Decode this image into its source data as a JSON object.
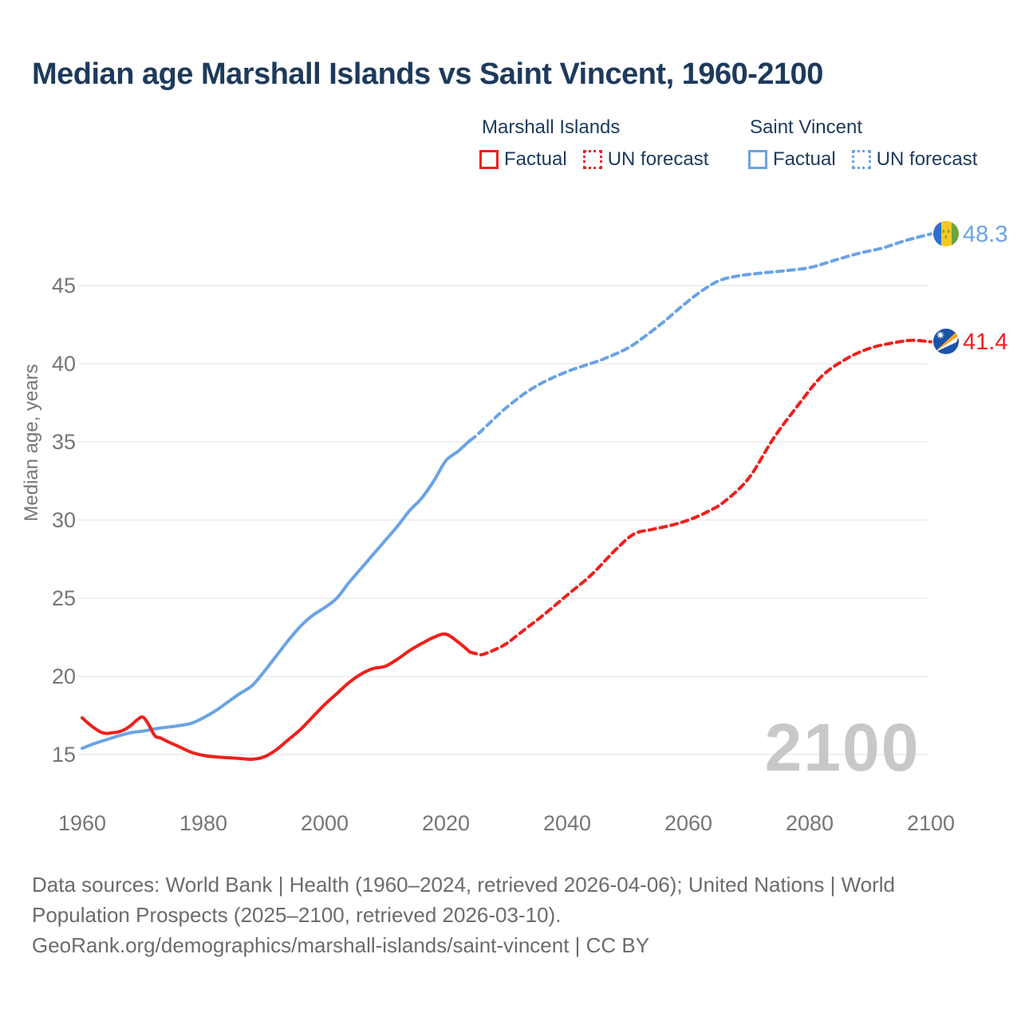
{
  "title": "Median age Marshall Islands vs Saint Vincent, 1960-2100",
  "legend": {
    "marshall": {
      "header": "Marshall Islands",
      "factual": "Factual",
      "forecast": "UN forecast"
    },
    "saint_vincent": {
      "header": "Saint Vincent",
      "factual": "Factual",
      "forecast": "UN forecast"
    }
  },
  "colors": {
    "marshall_series": "#ee201c",
    "saint_vincent_series": "#6aa3e4",
    "title_text": "#1d3a5c",
    "axis_text": "#767676",
    "gridline": "#ebebeb",
    "watermark_text": "#c8c8c8",
    "footer_text": "#6b6b6b"
  },
  "watermark": "2100",
  "end_labels": {
    "saint_vincent": "48.3",
    "marshall": "41.4"
  },
  "icons": {
    "saint_vincent": "saint-vincent-flag",
    "marshall": "marshall-islands-flag"
  },
  "chart_data": {
    "type": "line",
    "title": "Median age Marshall Islands vs Saint Vincent, 1960-2100",
    "xlabel": "",
    "ylabel": "Median age, years",
    "x_ticks": [
      1960,
      1980,
      2000,
      2020,
      2040,
      2060,
      2080,
      2100
    ],
    "y_ticks": [
      15,
      20,
      25,
      30,
      35,
      40,
      45
    ],
    "xlim": [
      1960,
      2100
    ],
    "ylim": [
      13.5,
      49
    ],
    "grid": "horizontal",
    "legend_position": "top-right",
    "series": [
      {
        "id": "saint-vincent-factual",
        "name": "Saint Vincent — Factual",
        "color": "#6aa3e4",
        "style": "solid",
        "points": [
          [
            1960,
            15.4
          ],
          [
            1962,
            15.7
          ],
          [
            1964,
            15.95
          ],
          [
            1966,
            16.2
          ],
          [
            1968,
            16.4
          ],
          [
            1970,
            16.5
          ],
          [
            1972,
            16.65
          ],
          [
            1974,
            16.75
          ],
          [
            1976,
            16.85
          ],
          [
            1978,
            17.0
          ],
          [
            1980,
            17.35
          ],
          [
            1982,
            17.8
          ],
          [
            1984,
            18.35
          ],
          [
            1986,
            18.9
          ],
          [
            1988,
            19.4
          ],
          [
            1990,
            20.3
          ],
          [
            1992,
            21.3
          ],
          [
            1994,
            22.3
          ],
          [
            1996,
            23.2
          ],
          [
            1998,
            23.9
          ],
          [
            2000,
            24.4
          ],
          [
            2002,
            25.0
          ],
          [
            2004,
            26.0
          ],
          [
            2006,
            26.9
          ],
          [
            2008,
            27.8
          ],
          [
            2010,
            28.7
          ],
          [
            2012,
            29.6
          ],
          [
            2014,
            30.6
          ],
          [
            2016,
            31.4
          ],
          [
            2018,
            32.5
          ],
          [
            2020,
            33.8
          ],
          [
            2022,
            34.4
          ],
          [
            2024,
            35.1
          ]
        ]
      },
      {
        "id": "saint-vincent-forecast",
        "name": "Saint Vincent — UN forecast",
        "color": "#6aa3e4",
        "style": "dashed",
        "points": [
          [
            2025,
            35.4
          ],
          [
            2028,
            36.5
          ],
          [
            2030,
            37.2
          ],
          [
            2033,
            38.1
          ],
          [
            2036,
            38.8
          ],
          [
            2040,
            39.5
          ],
          [
            2043,
            39.9
          ],
          [
            2046,
            40.3
          ],
          [
            2050,
            41.0
          ],
          [
            2053,
            41.8
          ],
          [
            2056,
            42.7
          ],
          [
            2059,
            43.7
          ],
          [
            2062,
            44.6
          ],
          [
            2065,
            45.3
          ],
          [
            2068,
            45.6
          ],
          [
            2072,
            45.8
          ],
          [
            2076,
            45.95
          ],
          [
            2080,
            46.15
          ],
          [
            2084,
            46.6
          ],
          [
            2088,
            47.05
          ],
          [
            2092,
            47.4
          ],
          [
            2096,
            47.9
          ],
          [
            2100,
            48.3
          ]
        ]
      },
      {
        "id": "marshall-factual",
        "name": "Marshall Islands — Factual",
        "color": "#ee201c",
        "style": "solid",
        "points": [
          [
            1960,
            17.35
          ],
          [
            1961,
            17.0
          ],
          [
            1962,
            16.7
          ],
          [
            1963,
            16.45
          ],
          [
            1964,
            16.35
          ],
          [
            1965,
            16.4
          ],
          [
            1966,
            16.45
          ],
          [
            1967,
            16.6
          ],
          [
            1968,
            16.85
          ],
          [
            1969,
            17.2
          ],
          [
            1970,
            17.4
          ],
          [
            1971,
            16.9
          ],
          [
            1972,
            16.2
          ],
          [
            1973,
            16.05
          ],
          [
            1974,
            15.85
          ],
          [
            1976,
            15.5
          ],
          [
            1978,
            15.15
          ],
          [
            1980,
            14.95
          ],
          [
            1982,
            14.85
          ],
          [
            1984,
            14.8
          ],
          [
            1986,
            14.75
          ],
          [
            1988,
            14.7
          ],
          [
            1990,
            14.85
          ],
          [
            1992,
            15.3
          ],
          [
            1994,
            15.95
          ],
          [
            1996,
            16.6
          ],
          [
            1998,
            17.4
          ],
          [
            2000,
            18.2
          ],
          [
            2002,
            18.9
          ],
          [
            2004,
            19.6
          ],
          [
            2006,
            20.15
          ],
          [
            2008,
            20.5
          ],
          [
            2010,
            20.65
          ],
          [
            2012,
            21.1
          ],
          [
            2014,
            21.65
          ],
          [
            2016,
            22.1
          ],
          [
            2018,
            22.5
          ],
          [
            2020,
            22.7
          ],
          [
            2022,
            22.2
          ],
          [
            2024,
            21.55
          ]
        ]
      },
      {
        "id": "marshall-forecast",
        "name": "Marshall Islands — UN forecast",
        "color": "#ee201c",
        "style": "dashed",
        "points": [
          [
            2025,
            21.45
          ],
          [
            2026,
            21.4
          ],
          [
            2028,
            21.7
          ],
          [
            2030,
            22.1
          ],
          [
            2033,
            23.0
          ],
          [
            2036,
            23.9
          ],
          [
            2040,
            25.2
          ],
          [
            2044,
            26.5
          ],
          [
            2048,
            28.1
          ],
          [
            2051,
            29.1
          ],
          [
            2054,
            29.4
          ],
          [
            2057,
            29.65
          ],
          [
            2060,
            30.0
          ],
          [
            2063,
            30.5
          ],
          [
            2066,
            31.2
          ],
          [
            2070,
            32.7
          ],
          [
            2074,
            35.2
          ],
          [
            2078,
            37.3
          ],
          [
            2082,
            39.2
          ],
          [
            2086,
            40.3
          ],
          [
            2090,
            41.0
          ],
          [
            2094,
            41.35
          ],
          [
            2097,
            41.5
          ],
          [
            2100,
            41.4
          ]
        ]
      }
    ]
  },
  "footer": {
    "line1": "Data sources: World Bank | Health (1960–2024, retrieved 2026-04-06); United Nations | World",
    "line2": "Population Prospects (2025–2100, retrieved 2026-03-10).",
    "line3": "GeoRank.org/demographics/marshall-islands/saint-vincent | CC BY"
  }
}
